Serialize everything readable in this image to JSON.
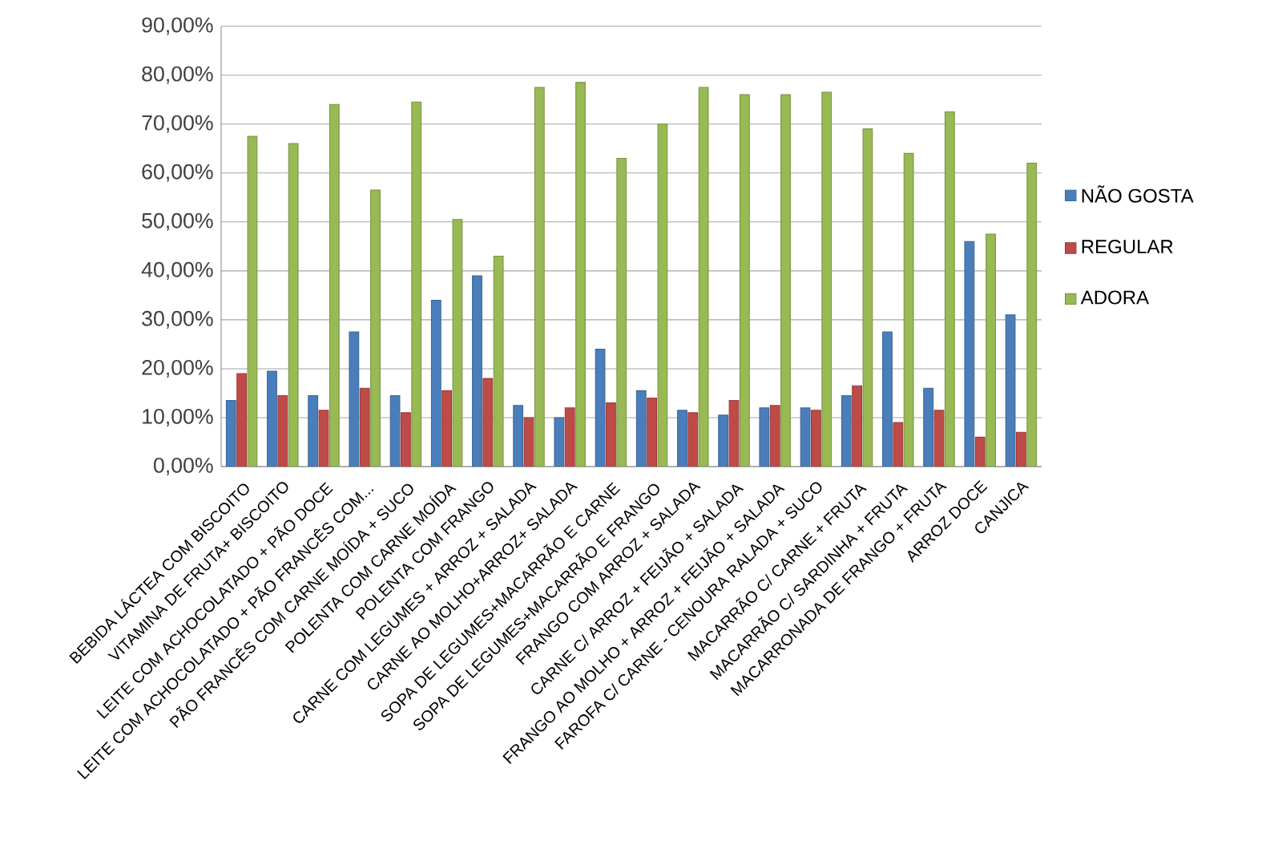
{
  "chart_data": {
    "type": "bar",
    "categories": [
      "BEBIDA LÁCTEA COM BISCOITO",
      "VITAMINA DE FRUTA+ BISCOITO",
      "LEITE COM ACHOCOLATADO + PÃO DOCE",
      "LEITE COM ACHOCOLATADO + PÃO FRANCÊS COM...",
      "PÃO FRANCÊS COM CARNE MOÍDA + SUCO",
      "POLENTA COM CARNE MOÍDA",
      "POLENTA COM FRANGO",
      "CARNE COM LEGUMES + ARROZ + SALADA",
      "CARNE AO MOLHO+ARROZ+ SALADA",
      "SOPA DE LEGUMES+MACARRÃO E CARNE",
      "SOPA DE LEGUMES+MACARRÃO E FRANGO",
      "FRANGO COM ARROZ + SALADA",
      "CARNE C/ ARROZ + FEIJÃO + SALADA",
      "FRANGO AO MOLHO + ARROZ + FEIJÃO + SALADA",
      "FAROFA C/ CARNE - CENOURA RALADA + SUCO",
      "MACARRÃO C/ CARNE + FRUTA",
      "MACARRÃO C/ SARDINHA + FRUTA",
      "MACARRONADA DE FRANGO + FRUTA",
      "ARROZ DOCE",
      "CANJICA"
    ],
    "series": [
      {
        "name": "NÃO GOSTA",
        "color": "#4a7ebb",
        "values": [
          13.5,
          19.5,
          14.5,
          27.5,
          14.5,
          34,
          39,
          12.5,
          10,
          24,
          15.5,
          11.5,
          10.5,
          12,
          12,
          14.5,
          27.5,
          16,
          46,
          31
        ]
      },
      {
        "name": "REGULAR",
        "color": "#be4b48",
        "values": [
          19,
          14.5,
          11.5,
          16,
          11,
          15.5,
          18,
          10,
          12,
          13,
          14,
          11,
          13.5,
          12.5,
          11.5,
          16.5,
          9,
          11.5,
          6,
          7
        ]
      },
      {
        "name": "ADORA",
        "color": "#98b954",
        "values": [
          67.5,
          66,
          74,
          56.5,
          74.5,
          50.5,
          43,
          77.5,
          78.5,
          63,
          70,
          77.5,
          76,
          76,
          76.5,
          69,
          64,
          72.5,
          47.5,
          62
        ]
      }
    ],
    "ylim": [
      0,
      90
    ],
    "yticks": [
      {
        "value": 0,
        "label": "0,00%"
      },
      {
        "value": 10,
        "label": "10,00%"
      },
      {
        "value": 20,
        "label": "20,00%"
      },
      {
        "value": 30,
        "label": "30,00%"
      },
      {
        "value": 40,
        "label": "40,00%"
      },
      {
        "value": 50,
        "label": "50,00%"
      },
      {
        "value": 60,
        "label": "60,00%"
      },
      {
        "value": 70,
        "label": "70,00%"
      },
      {
        "value": 80,
        "label": "80,00%"
      },
      {
        "value": 90,
        "label": "90,00%"
      }
    ],
    "grid": "y",
    "legend": "right"
  }
}
